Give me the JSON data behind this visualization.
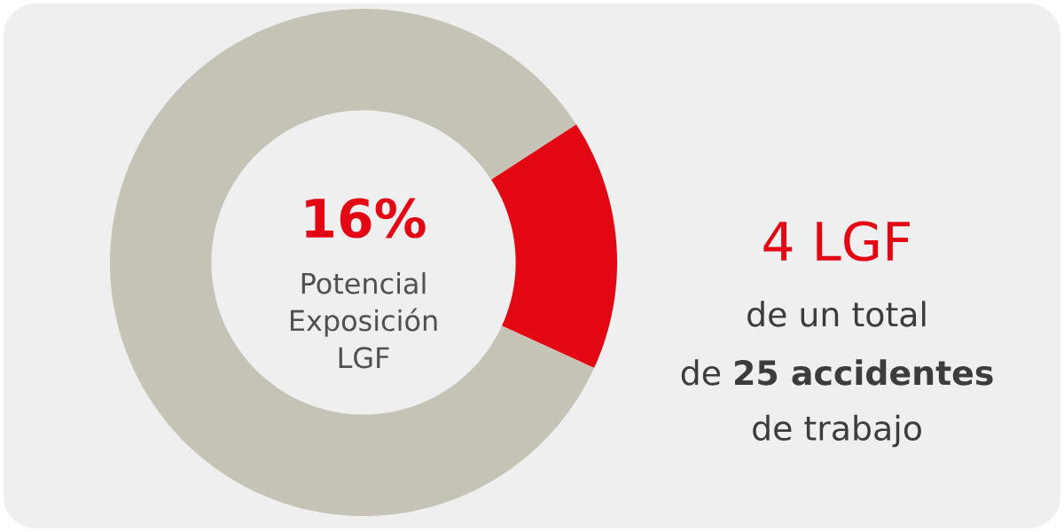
{
  "chart_data": {
    "type": "donut",
    "categories": [
      null,
      null
    ],
    "values": [
      16,
      84
    ],
    "colors": [
      "#e30613",
      "#c4c3b5"
    ],
    "annotations": [
      "16%",
      "Potencial Exposición LGF",
      "4 LGF",
      "de un total",
      "de **25 accidentes**",
      "de trabajo"
    ]
  }
}
